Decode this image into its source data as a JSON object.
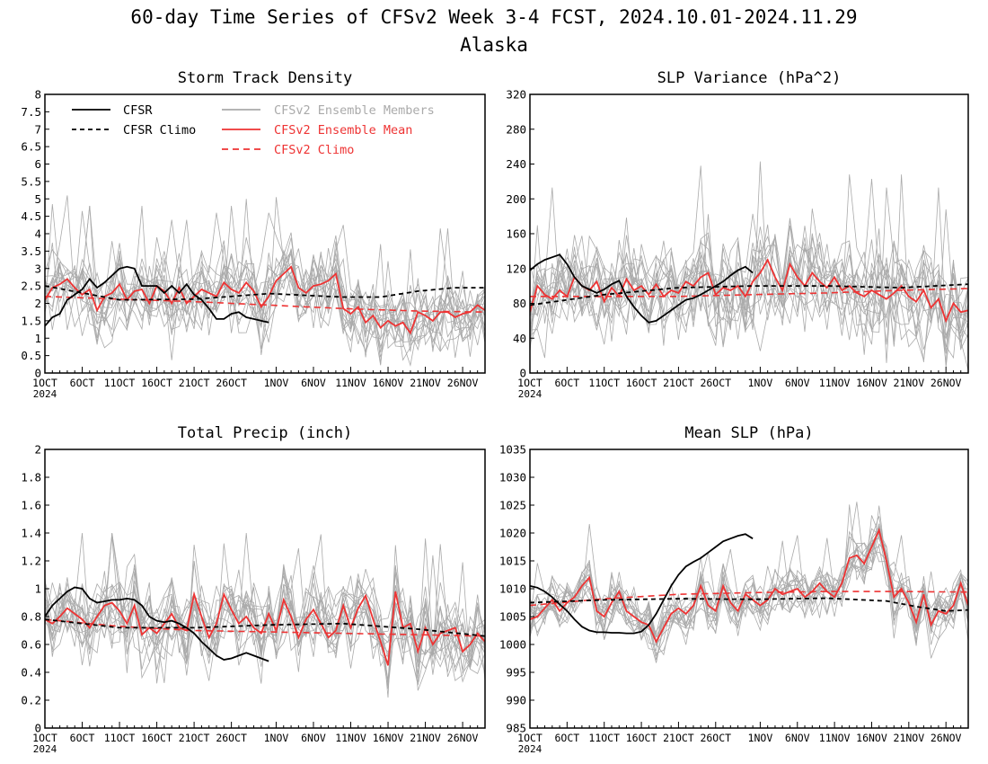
{
  "figure": {
    "title": "60-day Time Series of CFSv2 Week 3-4 FCST, 2024.10.01-2024.11.29",
    "subtitle": "Alaska"
  },
  "legend": {
    "cfsr": "CFSR",
    "cfsr_climo": "CFSR Climo",
    "members": "CFSv2 Ensemble Members",
    "ens_mean": "CFSv2 Ensemble Mean",
    "cfsv2_climo": "CFSv2 Climo"
  },
  "colors": {
    "cfsr": "#000000",
    "members": "#aaaaaa",
    "ens_mean": "#ee3333",
    "axis": "#000000"
  },
  "x_axis": {
    "ticks": [
      {
        "day": 0,
        "label": "1OCT"
      },
      {
        "day": 5,
        "label": "6OCT"
      },
      {
        "day": 10,
        "label": "11OCT"
      },
      {
        "day": 15,
        "label": "16OCT"
      },
      {
        "day": 20,
        "label": "21OCT"
      },
      {
        "day": 25,
        "label": "26OCT"
      },
      {
        "day": 31,
        "label": "1NOV"
      },
      {
        "day": 36,
        "label": "6NOV"
      },
      {
        "day": 41,
        "label": "11NOV"
      },
      {
        "day": 46,
        "label": "16NOV"
      },
      {
        "day": 51,
        "label": "21NOV"
      },
      {
        "day": 56,
        "label": "26NOV"
      }
    ],
    "year_label": "2024",
    "xlim": [
      0,
      59
    ]
  },
  "chart_data": [
    {
      "type": "line",
      "title": "Storm Track Density",
      "ylim": [
        0,
        8
      ],
      "yticks": [
        0,
        0.5,
        1,
        1.5,
        2,
        2.5,
        3,
        3.5,
        4,
        4.5,
        5,
        5.5,
        6,
        6.5,
        7,
        7.5,
        8
      ],
      "show_legend": true,
      "member_spread": 0.75,
      "member_center_noise": 0.3,
      "member_peak": 5.5,
      "series": [
        {
          "name": "CFSR",
          "x": [
            0,
            1,
            2,
            3,
            4,
            5,
            6,
            7,
            8,
            9,
            10,
            11,
            12,
            13,
            14,
            15,
            16,
            17,
            18,
            19,
            20,
            21,
            22,
            23,
            24,
            25,
            26,
            27,
            28,
            29,
            30
          ],
          "values": [
            1.35,
            1.6,
            1.7,
            2.1,
            2.25,
            2.4,
            2.7,
            2.45,
            2.6,
            2.8,
            3.0,
            3.05,
            3.0,
            2.5,
            2.5,
            2.5,
            2.3,
            2.5,
            2.3,
            2.55,
            2.25,
            2.1,
            1.85,
            1.55,
            1.55,
            1.7,
            1.75,
            1.6,
            1.55,
            1.5,
            1.45
          ]
        },
        {
          "name": "CFSR Climo",
          "x": [
            0,
            10,
            20,
            30,
            40,
            45,
            50,
            55,
            59
          ],
          "values": [
            2.5,
            2.1,
            2.12,
            2.28,
            2.18,
            2.18,
            2.35,
            2.45,
            2.45
          ]
        },
        {
          "name": "CFSv2 Ensemble Mean",
          "x": [
            0,
            1,
            2,
            3,
            4,
            5,
            6,
            7,
            8,
            9,
            10,
            11,
            12,
            13,
            14,
            15,
            16,
            17,
            18,
            19,
            20,
            21,
            22,
            23,
            24,
            25,
            26,
            27,
            28,
            29,
            30,
            31,
            32,
            33,
            34,
            35,
            36,
            37,
            38,
            39,
            40,
            41,
            42,
            43,
            44,
            45,
            46,
            47,
            48,
            49,
            50,
            51,
            52,
            53,
            54,
            55,
            56,
            57,
            58,
            59
          ],
          "values": [
            2.1,
            2.45,
            2.55,
            2.7,
            2.45,
            2.25,
            2.4,
            1.8,
            2.2,
            2.3,
            2.55,
            2.1,
            2.35,
            2.4,
            2.0,
            2.5,
            2.35,
            2.0,
            2.45,
            2.0,
            2.2,
            2.4,
            2.3,
            2.2,
            2.6,
            2.4,
            2.3,
            2.6,
            2.35,
            1.9,
            2.2,
            2.65,
            2.85,
            3.05,
            2.45,
            2.3,
            2.5,
            2.55,
            2.65,
            2.85,
            1.85,
            1.7,
            1.9,
            1.45,
            1.65,
            1.3,
            1.5,
            1.35,
            1.45,
            1.15,
            1.75,
            1.65,
            1.5,
            1.75,
            1.75,
            1.6,
            1.7,
            1.75,
            1.95,
            1.8
          ]
        },
        {
          "name": "CFSv2 Climo",
          "x": [
            0,
            10,
            20,
            30,
            40,
            50,
            59
          ],
          "values": [
            2.2,
            2.12,
            2.05,
            1.95,
            1.85,
            1.78,
            1.75
          ]
        }
      ]
    },
    {
      "type": "line",
      "title": "SLP Variance (hPa^2)",
      "ylim": [
        0,
        320
      ],
      "yticks": [
        0,
        40,
        80,
        120,
        160,
        200,
        240,
        280,
        320
      ],
      "show_legend": false,
      "member_spread": 40,
      "member_center_noise": 10,
      "member_peak": 320,
      "series": [
        {
          "name": "CFSR",
          "x": [
            0,
            1,
            2,
            3,
            4,
            5,
            6,
            7,
            8,
            9,
            10,
            11,
            12,
            13,
            14,
            15,
            16,
            17,
            18,
            19,
            20,
            21,
            22,
            23,
            24,
            25,
            26,
            27,
            28,
            29,
            30
          ],
          "values": [
            118,
            125,
            130,
            133,
            136,
            125,
            110,
            100,
            96,
            92,
            96,
            102,
            106,
            88,
            76,
            66,
            58,
            60,
            66,
            72,
            78,
            84,
            86,
            90,
            95,
            100,
            105,
            112,
            118,
            122,
            115
          ]
        },
        {
          "name": "CFSR Climo",
          "x": [
            0,
            10,
            20,
            30,
            40,
            50,
            59
          ],
          "values": [
            78,
            90,
            98,
            100,
            100,
            98,
            102
          ]
        },
        {
          "name": "CFSv2 Ensemble Mean",
          "x": [
            0,
            1,
            2,
            3,
            4,
            5,
            6,
            7,
            8,
            9,
            10,
            11,
            12,
            13,
            14,
            15,
            16,
            17,
            18,
            19,
            20,
            21,
            22,
            23,
            24,
            25,
            26,
            27,
            28,
            29,
            30,
            31,
            32,
            33,
            34,
            35,
            36,
            37,
            38,
            39,
            40,
            41,
            42,
            43,
            44,
            45,
            46,
            47,
            48,
            49,
            50,
            51,
            52,
            53,
            54,
            55,
            56,
            57,
            58,
            59
          ],
          "values": [
            70,
            100,
            90,
            85,
            95,
            88,
            110,
            100,
            95,
            105,
            82,
            98,
            88,
            108,
            95,
            100,
            90,
            102,
            88,
            95,
            92,
            105,
            100,
            110,
            115,
            90,
            98,
            95,
            100,
            88,
            105,
            115,
            130,
            110,
            95,
            125,
            110,
            100,
            115,
            105,
            98,
            110,
            95,
            100,
            92,
            88,
            95,
            90,
            85,
            92,
            100,
            88,
            82,
            95,
            75,
            85,
            60,
            80,
            70,
            72
          ]
        },
        {
          "name": "CFSv2 Climo",
          "x": [
            0,
            10,
            20,
            30,
            40,
            50,
            59
          ],
          "values": [
            88,
            88,
            88,
            90,
            92,
            95,
            97
          ]
        }
      ]
    },
    {
      "type": "line",
      "title": "Total Precip (inch)",
      "ylim": [
        0,
        2
      ],
      "yticks": [
        0,
        0.2,
        0.4,
        0.6,
        0.8,
        1,
        1.2,
        1.4,
        1.6,
        1.8,
        2
      ],
      "show_legend": false,
      "member_spread": 0.2,
      "member_center_noise": 0.08,
      "member_peak": 1.4,
      "series": [
        {
          "name": "CFSR",
          "x": [
            0,
            1,
            2,
            3,
            4,
            5,
            6,
            7,
            8,
            9,
            10,
            11,
            12,
            13,
            14,
            15,
            16,
            17,
            18,
            19,
            20,
            21,
            22,
            23,
            24,
            25,
            26,
            27,
            28,
            29,
            30
          ],
          "values": [
            0.8,
            0.88,
            0.93,
            0.98,
            1.01,
            1.0,
            0.93,
            0.9,
            0.91,
            0.92,
            0.92,
            0.93,
            0.92,
            0.88,
            0.8,
            0.77,
            0.76,
            0.77,
            0.75,
            0.72,
            0.68,
            0.62,
            0.57,
            0.52,
            0.49,
            0.5,
            0.52,
            0.54,
            0.52,
            0.5,
            0.48
          ]
        },
        {
          "name": "CFSR Climo",
          "x": [
            0,
            10,
            20,
            30,
            40,
            50,
            59
          ],
          "values": [
            0.78,
            0.72,
            0.72,
            0.74,
            0.75,
            0.71,
            0.66
          ]
        },
        {
          "name": "CFSv2 Ensemble Mean",
          "x": [
            0,
            1,
            2,
            3,
            4,
            5,
            6,
            7,
            8,
            9,
            10,
            11,
            12,
            13,
            14,
            15,
            16,
            17,
            18,
            19,
            20,
            21,
            22,
            23,
            24,
            25,
            26,
            27,
            28,
            29,
            30,
            31,
            32,
            33,
            34,
            35,
            36,
            37,
            38,
            39,
            40,
            41,
            42,
            43,
            44,
            45,
            46,
            47,
            48,
            49,
            50,
            51,
            52,
            53,
            54,
            55,
            56,
            57,
            58,
            59
          ],
          "values": [
            0.78,
            0.75,
            0.8,
            0.86,
            0.82,
            0.78,
            0.72,
            0.8,
            0.88,
            0.9,
            0.84,
            0.75,
            0.88,
            0.67,
            0.72,
            0.68,
            0.75,
            0.82,
            0.72,
            0.7,
            0.96,
            0.8,
            0.65,
            0.75,
            0.96,
            0.85,
            0.75,
            0.8,
            0.72,
            0.68,
            0.82,
            0.7,
            0.92,
            0.8,
            0.65,
            0.78,
            0.85,
            0.75,
            0.65,
            0.7,
            0.88,
            0.72,
            0.86,
            0.95,
            0.78,
            0.62,
            0.45,
            0.98,
            0.72,
            0.75,
            0.55,
            0.72,
            0.6,
            0.68,
            0.7,
            0.72,
            0.55,
            0.6,
            0.68,
            0.62
          ]
        },
        {
          "name": "CFSv2 Climo",
          "x": [
            0,
            10,
            20,
            30,
            40,
            50,
            59
          ],
          "values": [
            0.78,
            0.73,
            0.7,
            0.69,
            0.68,
            0.67,
            0.66
          ]
        }
      ]
    },
    {
      "type": "line",
      "title": "Mean SLP (hPa)",
      "ylim": [
        985,
        1035
      ],
      "yticks": [
        985,
        990,
        995,
        1000,
        1005,
        1010,
        1015,
        1020,
        1025,
        1030,
        1035
      ],
      "show_legend": false,
      "member_spread": 3,
      "member_center_noise": 1.2,
      "member_peak": 1032,
      "series": [
        {
          "name": "CFSR",
          "x": [
            0,
            1,
            2,
            3,
            4,
            5,
            6,
            7,
            8,
            9,
            10,
            11,
            12,
            13,
            14,
            15,
            16,
            17,
            18,
            19,
            20,
            21,
            22,
            23,
            24,
            25,
            26,
            27,
            28,
            29,
            30
          ],
          "values": [
            1010.5,
            1010.2,
            1009.5,
            1008.5,
            1007.2,
            1006.0,
            1004.5,
            1003.2,
            1002.5,
            1002.2,
            1002.2,
            1002.1,
            1002.1,
            1002.0,
            1002.0,
            1002.3,
            1003.5,
            1005.5,
            1008.0,
            1010.5,
            1012.5,
            1014.0,
            1014.8,
            1015.5,
            1016.5,
            1017.5,
            1018.5,
            1019.0,
            1019.5,
            1019.8,
            1019.0
          ]
        },
        {
          "name": "CFSR Climo",
          "x": [
            0,
            10,
            20,
            30,
            40,
            48,
            52,
            56,
            59
          ],
          "values": [
            1007.5,
            1008.0,
            1008.2,
            1008.1,
            1008.3,
            1007.8,
            1006.8,
            1006.0,
            1006.2
          ]
        },
        {
          "name": "CFSv2 Ensemble Mean",
          "x": [
            0,
            1,
            2,
            3,
            4,
            5,
            6,
            7,
            8,
            9,
            10,
            11,
            12,
            13,
            14,
            15,
            16,
            17,
            18,
            19,
            20,
            21,
            22,
            23,
            24,
            25,
            26,
            27,
            28,
            29,
            30,
            31,
            32,
            33,
            34,
            35,
            36,
            37,
            38,
            39,
            40,
            41,
            42,
            43,
            44,
            45,
            46,
            47,
            48,
            49,
            50,
            51,
            52,
            53,
            54,
            55,
            56,
            57,
            58,
            59
          ],
          "values": [
            1004.5,
            1005.0,
            1006.5,
            1008.0,
            1006.0,
            1007.5,
            1008.5,
            1010.5,
            1012.0,
            1006.0,
            1005.0,
            1007.5,
            1009.5,
            1006.0,
            1005.0,
            1004.0,
            1003.5,
            1000.5,
            1003.0,
            1005.5,
            1006.5,
            1005.5,
            1007.0,
            1010.5,
            1007.0,
            1006.0,
            1010.5,
            1007.5,
            1006.0,
            1009.0,
            1008.0,
            1007.0,
            1008.0,
            1010.0,
            1009.0,
            1009.5,
            1010.0,
            1008.5,
            1009.5,
            1011.0,
            1009.5,
            1008.5,
            1011.0,
            1015.5,
            1016.0,
            1014.5,
            1017.5,
            1020.5,
            1015.0,
            1008.5,
            1010.0,
            1007.5,
            1004.0,
            1009.0,
            1003.5,
            1006.0,
            1005.5,
            1007.0,
            1011.0,
            1007.0
          ]
        },
        {
          "name": "CFSv2 Climo",
          "x": [
            0,
            10,
            20,
            30,
            40,
            50,
            59
          ],
          "values": [
            1007.0,
            1008.2,
            1009.0,
            1009.3,
            1009.5,
            1009.5,
            1009.4
          ]
        }
      ]
    }
  ]
}
